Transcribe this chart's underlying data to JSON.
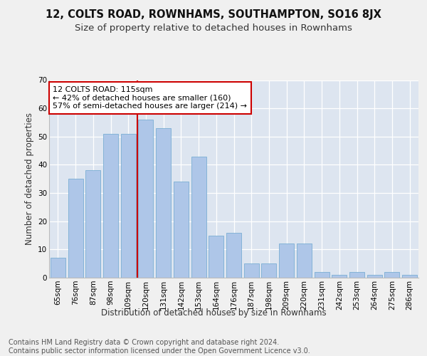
{
  "title1": "12, COLTS ROAD, ROWNHAMS, SOUTHAMPTON, SO16 8JX",
  "title2": "Size of property relative to detached houses in Rownhams",
  "xlabel": "Distribution of detached houses by size in Rownhams",
  "ylabel": "Number of detached properties",
  "categories": [
    "65sqm",
    "76sqm",
    "87sqm",
    "98sqm",
    "109sqm",
    "120sqm",
    "131sqm",
    "142sqm",
    "153sqm",
    "164sqm",
    "176sqm",
    "187sqm",
    "198sqm",
    "209sqm",
    "220sqm",
    "231sqm",
    "242sqm",
    "253sqm",
    "264sqm",
    "275sqm",
    "286sqm"
  ],
  "values": [
    7,
    35,
    38,
    51,
    51,
    56,
    53,
    34,
    43,
    15,
    16,
    5,
    5,
    12,
    12,
    2,
    1,
    2,
    1,
    2,
    1
  ],
  "bar_color": "#aec6e8",
  "bar_edge_color": "#7aaed4",
  "vline_x": 4.5,
  "vline_color": "#cc0000",
  "annotation_text": "12 COLTS ROAD: 115sqm\n← 42% of detached houses are smaller (160)\n57% of semi-detached houses are larger (214) →",
  "annotation_box_color": "#ffffff",
  "annotation_box_edge": "#cc0000",
  "ylim": [
    0,
    70
  ],
  "yticks": [
    0,
    10,
    20,
    30,
    40,
    50,
    60,
    70
  ],
  "background_color": "#dde5f0",
  "fig_background_color": "#f0f0f0",
  "footer_text": "Contains HM Land Registry data © Crown copyright and database right 2024.\nContains public sector information licensed under the Open Government Licence v3.0.",
  "title1_fontsize": 10.5,
  "title2_fontsize": 9.5,
  "xlabel_fontsize": 8.5,
  "ylabel_fontsize": 8.5,
  "tick_fontsize": 7.5,
  "footer_fontsize": 7.0,
  "annotation_fontsize": 8.0
}
